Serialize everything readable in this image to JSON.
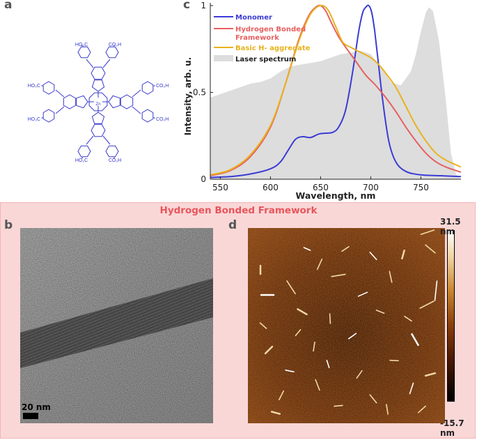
{
  "panels": {
    "a": "a",
    "b": "b",
    "c": "c",
    "d": "d"
  },
  "molecule": {
    "metal_label": "Zn",
    "substituent_label": "CO₂H",
    "substituent_label_alt": "HO₂C",
    "line_color": "#3a3acc"
  },
  "band_title": "Hydrogen Bonded Framework",
  "tem": {
    "scale_bar_label": "20 nm"
  },
  "afm": {
    "color_max_label": "31.5 nm",
    "color_min_label": "-15.7 nm"
  },
  "chart_data": {
    "type": "line",
    "xlabel": "Wavelength, nm",
    "ylabel": "Intensity, arb. u.",
    "xlim": [
      540,
      790
    ],
    "ylim": [
      0,
      1
    ],
    "xticks": [
      550,
      600,
      650,
      700,
      750
    ],
    "yticks": [
      0,
      0.5,
      1
    ],
    "ytick_labels": [
      "0",
      "0.5",
      "1"
    ],
    "legend_position": "top-left",
    "series": [
      {
        "name": "Monomer",
        "color": "#3b3bd6",
        "x": [
          540,
          560,
          580,
          600,
          610,
          618,
          625,
          632,
          640,
          648,
          655,
          662,
          668,
          675,
          682,
          688,
          692,
          695,
          698,
          701,
          704,
          708,
          712,
          718,
          725,
          735,
          750,
          770,
          790
        ],
        "y": [
          0.01,
          0.015,
          0.03,
          0.06,
          0.1,
          0.17,
          0.23,
          0.245,
          0.24,
          0.26,
          0.265,
          0.27,
          0.3,
          0.4,
          0.62,
          0.85,
          0.96,
          0.99,
          1.0,
          0.96,
          0.85,
          0.65,
          0.45,
          0.22,
          0.1,
          0.045,
          0.025,
          0.02,
          0.015
        ]
      },
      {
        "name": "Hydrogen Bonded\nFramework",
        "color": "#e76060",
        "x": [
          540,
          560,
          580,
          600,
          615,
          628,
          638,
          645,
          650,
          655,
          660,
          668,
          675,
          685,
          695,
          705,
          715,
          725,
          735,
          745,
          755,
          765,
          775,
          790
        ],
        "y": [
          0.02,
          0.05,
          0.13,
          0.3,
          0.55,
          0.8,
          0.94,
          0.99,
          1.0,
          0.97,
          0.91,
          0.82,
          0.76,
          0.68,
          0.6,
          0.54,
          0.47,
          0.39,
          0.3,
          0.22,
          0.15,
          0.1,
          0.07,
          0.04
        ]
      },
      {
        "name": "Basic H- aggregate",
        "color": "#e8b21e",
        "x": [
          540,
          560,
          580,
          600,
          615,
          628,
          638,
          645,
          652,
          658,
          665,
          672,
          680,
          690,
          700,
          708,
          715,
          725,
          735,
          745,
          755,
          765,
          775,
          790
        ],
        "y": [
          0.025,
          0.055,
          0.14,
          0.31,
          0.55,
          0.79,
          0.93,
          0.985,
          1.0,
          0.97,
          0.88,
          0.79,
          0.76,
          0.73,
          0.7,
          0.66,
          0.61,
          0.53,
          0.42,
          0.31,
          0.22,
          0.15,
          0.11,
          0.07
        ]
      }
    ],
    "area": {
      "name": "Laser spectrum",
      "color": "#dddddd",
      "x": [
        540,
        550,
        560,
        570,
        580,
        590,
        600,
        610,
        620,
        630,
        640,
        650,
        660,
        670,
        680,
        690,
        700,
        710,
        720,
        730,
        740,
        745,
        750,
        755,
        758,
        762,
        768,
        775,
        780,
        785,
        790
      ],
      "y": [
        0.47,
        0.49,
        0.51,
        0.53,
        0.55,
        0.56,
        0.58,
        0.62,
        0.65,
        0.66,
        0.67,
        0.68,
        0.7,
        0.72,
        0.73,
        0.74,
        0.72,
        0.65,
        0.56,
        0.54,
        0.62,
        0.72,
        0.85,
        0.96,
        0.99,
        0.97,
        0.8,
        0.45,
        0.15,
        0.03,
        0.0
      ]
    }
  }
}
